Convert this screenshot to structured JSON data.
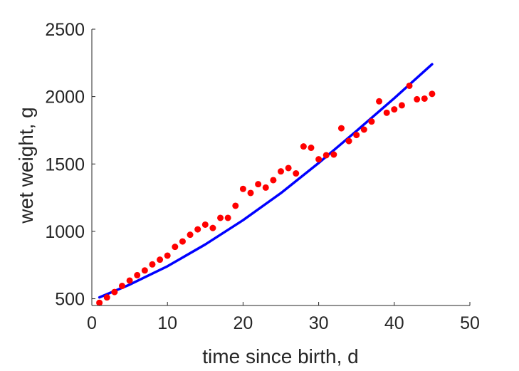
{
  "chart_data": {
    "type": "scatter",
    "title": "",
    "xlabel": "time since birth, d",
    "ylabel": "wet weight, g",
    "xlim": [
      0,
      50
    ],
    "ylim": [
      450,
      2500
    ],
    "xticks": [
      0,
      10,
      20,
      30,
      40,
      50
    ],
    "yticks": [
      500,
      1000,
      1500,
      2000,
      2500
    ],
    "grid": false,
    "colors": {
      "points": "#ff0000",
      "line": "#0000ff",
      "axes": "#262626"
    },
    "series": [
      {
        "kind": "points",
        "x": [
          1,
          2,
          3,
          4,
          5,
          6,
          7,
          8,
          9,
          10,
          11,
          12,
          13,
          14,
          15,
          16,
          17,
          18,
          19,
          20,
          21,
          22,
          23,
          24,
          25,
          26,
          27,
          28,
          29,
          30,
          31,
          32,
          33,
          34,
          35,
          36,
          37,
          38,
          39,
          40,
          41,
          42,
          43,
          44,
          45
        ],
        "y": [
          470,
          510,
          550,
          595,
          635,
          675,
          710,
          755,
          790,
          820,
          885,
          925,
          975,
          1015,
          1050,
          1025,
          1100,
          1100,
          1190,
          1315,
          1285,
          1350,
          1325,
          1380,
          1445,
          1470,
          1430,
          1630,
          1620,
          1535,
          1565,
          1570,
          1765,
          1670,
          1715,
          1755,
          1815,
          1965,
          1880,
          1905,
          1935,
          2080,
          1980,
          1985,
          2020
        ]
      },
      {
        "kind": "line",
        "x": [
          1,
          5,
          10,
          15,
          20,
          25,
          30,
          35,
          40,
          45
        ],
        "y": [
          510,
          605,
          741,
          903,
          1083,
          1284,
          1507,
          1745,
          1988,
          2240
        ]
      }
    ]
  }
}
